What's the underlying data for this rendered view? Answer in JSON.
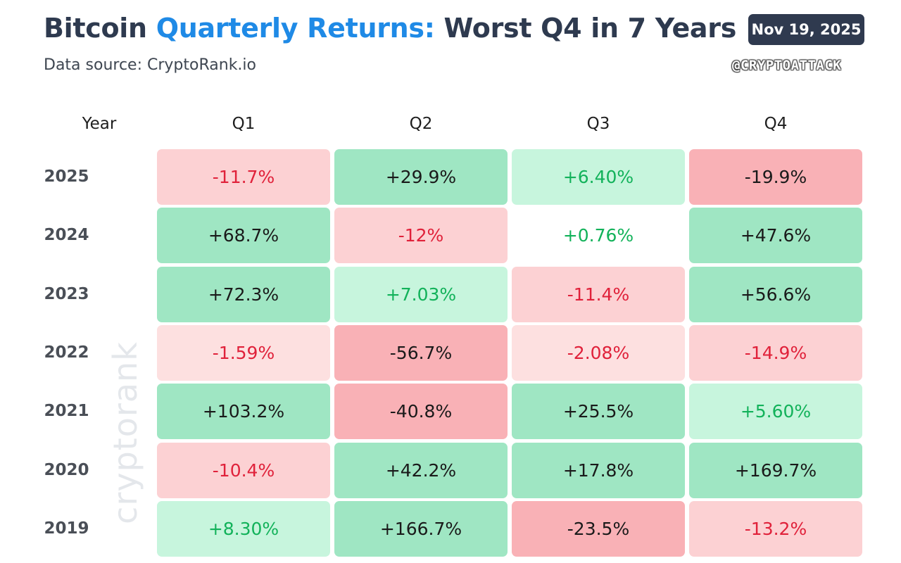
{
  "header": {
    "title_part1": "Bitcoin ",
    "title_accent": "Quarterly Returns:",
    "title_part2": " Worst Q4 in 7 Years",
    "subtitle": "Data source: CryptoRank.io",
    "date": "Nov 19, 2025",
    "handle": "@CRYPTOATTACK"
  },
  "watermark": "cryptorank",
  "colors": {
    "accent": "#1f8ae6",
    "title": "#2e3a4f",
    "strong_green": "#9fe6c3",
    "light_green": "#c7f5dd",
    "light_red": "#fde0e0",
    "mid_red": "#fcd1d3",
    "strong_red": "#f9b1b6"
  },
  "chart_data": {
    "type": "table",
    "title": "Bitcoin Quarterly Returns: Worst Q4 in 7 Years",
    "year_header": "Year",
    "columns": [
      "Q1",
      "Q2",
      "Q3",
      "Q4"
    ],
    "rows": [
      {
        "year": "2025",
        "values": [
          "-11.7%",
          "+29.9%",
          "+6.40%",
          "-19.9%"
        ]
      },
      {
        "year": "2024",
        "values": [
          "+68.7%",
          "-12%",
          "+0.76%",
          "+47.6%"
        ]
      },
      {
        "year": "2023",
        "values": [
          "+72.3%",
          "+7.03%",
          "-11.4%",
          "+56.6%"
        ]
      },
      {
        "year": "2022",
        "values": [
          "-1.59%",
          "-56.7%",
          "-2.08%",
          "-14.9%"
        ]
      },
      {
        "year": "2021",
        "values": [
          "+103.2%",
          "-40.8%",
          "+25.5%",
          "+5.60%"
        ]
      },
      {
        "year": "2020",
        "values": [
          "-10.4%",
          "+42.2%",
          "+17.8%",
          "+169.7%"
        ]
      },
      {
        "year": "2019",
        "values": [
          "+8.30%",
          "+166.7%",
          "-23.5%",
          "-13.2%"
        ]
      }
    ]
  }
}
